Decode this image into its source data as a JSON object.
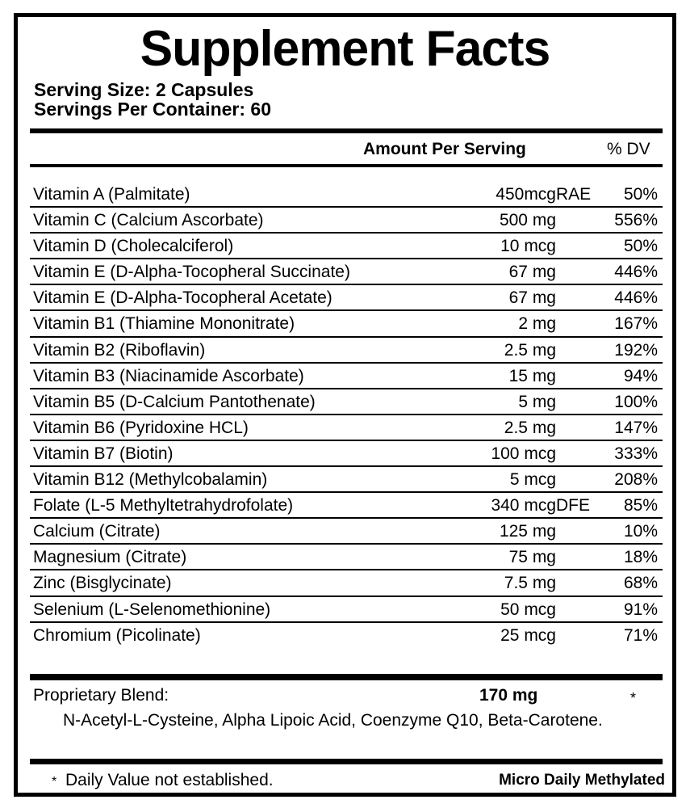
{
  "label": {
    "title": "Supplement Facts",
    "serving_size": "Serving Size: 2 Capsules",
    "servings_per_container": "Servings Per Container: 60",
    "header": {
      "amount": "Amount Per Serving",
      "dv": "% DV"
    },
    "rows": [
      {
        "name": "Vitamin A (Palmitate)",
        "amount": "450mcg",
        "unit": "RAE",
        "dv": "50%"
      },
      {
        "name": "Vitamin C (Calcium Ascorbate)",
        "amount": "500 mg",
        "unit": "",
        "dv": "556%"
      },
      {
        "name": "Vitamin D (Cholecalciferol)",
        "amount": "10 mcg",
        "unit": "",
        "dv": "50%"
      },
      {
        "name": "Vitamin E (D-Alpha-Tocopheral Succinate)",
        "amount": "67 mg",
        "unit": "",
        "dv": "446%"
      },
      {
        "name": "Vitamin E (D-Alpha-Tocopheral Acetate)",
        "amount": "67 mg",
        "unit": "",
        "dv": "446%"
      },
      {
        "name": "Vitamin B1 (Thiamine Mononitrate)",
        "amount": "2 mg",
        "unit": "",
        "dv": "167%"
      },
      {
        "name": "Vitamin B2 (Riboflavin)",
        "amount": "2.5 mg",
        "unit": "",
        "dv": "192%"
      },
      {
        "name": "Vitamin B3 (Niacinamide Ascorbate)",
        "amount": "15 mg",
        "unit": "",
        "dv": "94%"
      },
      {
        "name": "Vitamin B5 (D-Calcium Pantothenate)",
        "amount": "5 mg",
        "unit": "",
        "dv": "100%"
      },
      {
        "name": "Vitamin B6 (Pyridoxine HCL)",
        "amount": "2.5 mg",
        "unit": "",
        "dv": "147%"
      },
      {
        "name": "Vitamin B7 (Biotin)",
        "amount": "100 mcg",
        "unit": "",
        "dv": "333%"
      },
      {
        "name": "Vitamin B12 (Methylcobalamin)",
        "amount": "5 mcg",
        "unit": "",
        "dv": "208%"
      },
      {
        "name": "Folate (L-5 Methyltetrahydrofolate)",
        "amount": "340 mcg",
        "unit": "DFE",
        "dv": "85%"
      },
      {
        "name": "Calcium (Citrate)",
        "amount": "125 mg",
        "unit": "",
        "dv": "10%"
      },
      {
        "name": "Magnesium (Citrate)",
        "amount": "75 mg",
        "unit": "",
        "dv": "18%"
      },
      {
        "name": "Zinc (Bisglycinate)",
        "amount": "7.5 mg",
        "unit": "",
        "dv": "68%"
      },
      {
        "name": "Selenium (L-Selenomethionine)",
        "amount": "50 mcg",
        "unit": "",
        "dv": "91%"
      },
      {
        "name": "Chromium (Picolinate)",
        "amount": "25 mcg",
        "unit": "",
        "dv": "71%"
      }
    ],
    "blend": {
      "name": "Proprietary Blend:",
      "amount": "170 mg",
      "dv": "*",
      "ingredients": "N-Acetyl-L-Cysteine, Alpha Lipoic Acid, Coenzyme Q10, Beta-Carotene."
    },
    "footer": {
      "asterisk": "*",
      "note": "Daily Value not established.",
      "brand": "Micro Daily Methylated"
    }
  }
}
